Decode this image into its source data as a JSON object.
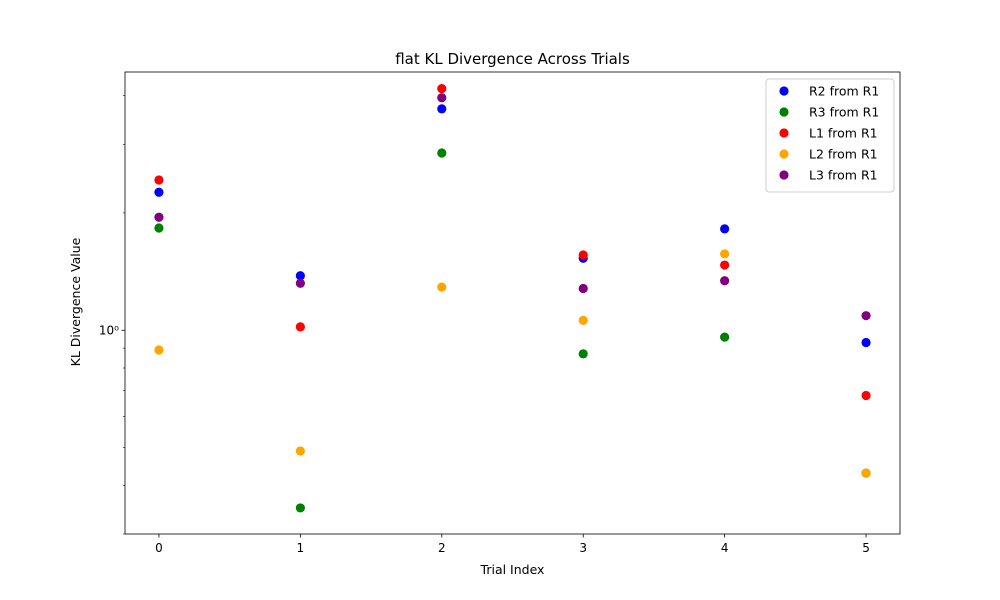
{
  "chart_data": {
    "type": "scatter",
    "title": "flat KL Divergence Across Trials",
    "xlabel": "Trial Index",
    "ylabel": "KL Divergence Value",
    "yscale": "log",
    "xlim": [
      -0.24,
      5.24
    ],
    "ylim": [
      0.3,
      4.6
    ],
    "x_ticks": [
      0,
      1,
      2,
      3,
      4,
      5
    ],
    "y_ticks": [
      {
        "value": 1,
        "label": "10⁰"
      }
    ],
    "legend_position": "top-right",
    "grid": false,
    "x": [
      0,
      1,
      2,
      3,
      4,
      5
    ],
    "series": [
      {
        "name": "R2 from R1",
        "color": "#0000ff",
        "values": [
          2.26,
          1.38,
          3.7,
          1.53,
          1.82,
          0.93
        ]
      },
      {
        "name": "R3 from R1",
        "color": "#008000",
        "values": [
          1.83,
          0.35,
          2.85,
          0.87,
          0.96,
          0.43
        ]
      },
      {
        "name": "L1 from R1",
        "color": "#ff0000",
        "values": [
          2.43,
          1.02,
          4.17,
          1.56,
          1.47,
          0.68
        ]
      },
      {
        "name": "L2 from R1",
        "color": "#ffa500",
        "values": [
          0.89,
          0.49,
          1.29,
          1.06,
          1.57,
          0.43
        ]
      },
      {
        "name": "L3 from R1",
        "color": "#800080",
        "values": [
          1.95,
          1.32,
          3.95,
          1.28,
          1.34,
          1.09
        ]
      }
    ]
  }
}
